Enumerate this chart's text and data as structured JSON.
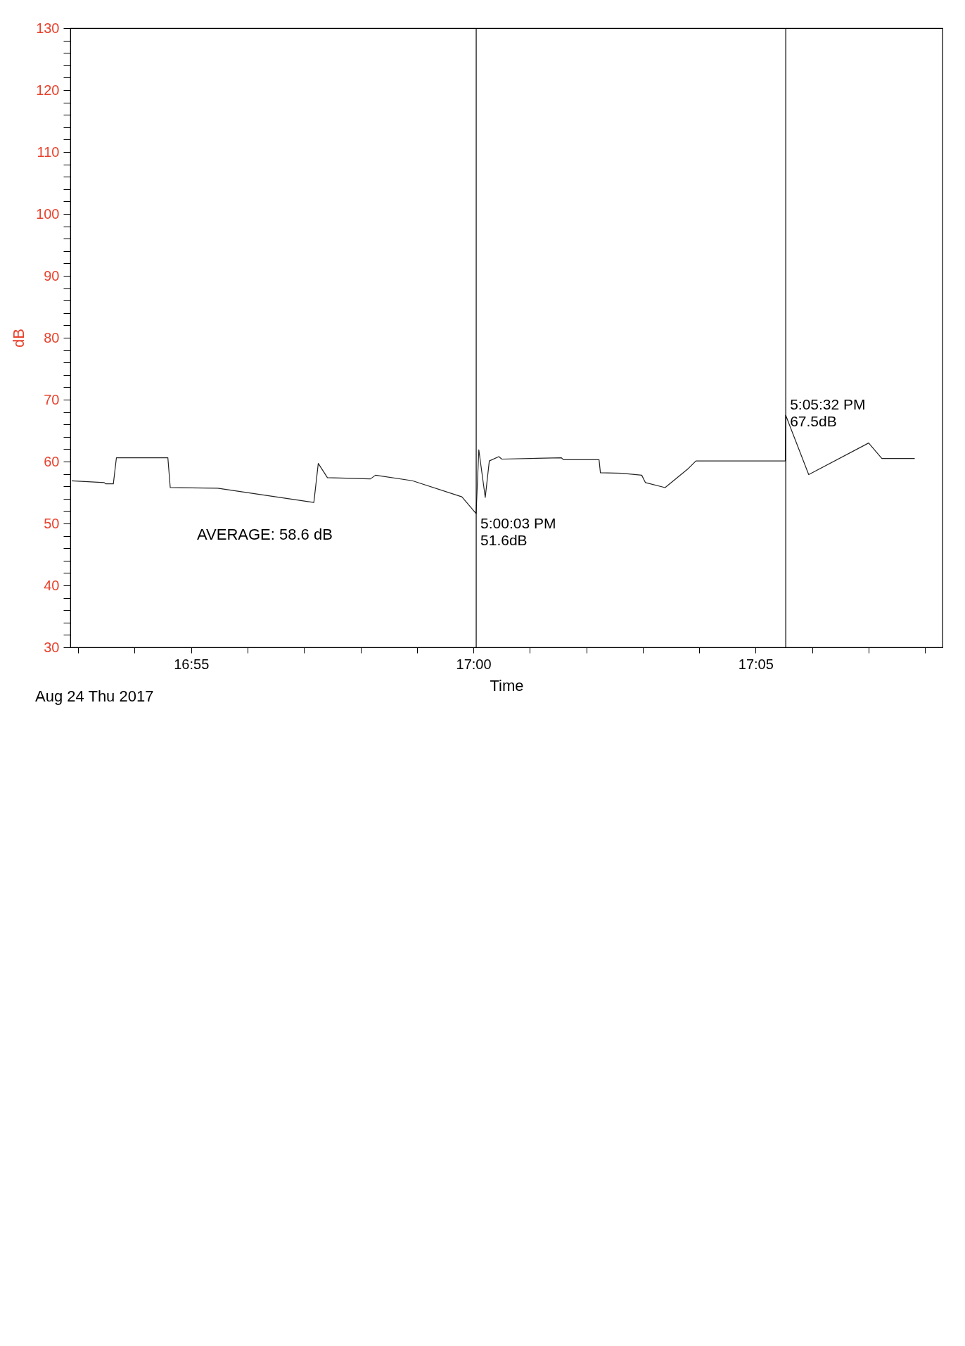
{
  "chart_data": {
    "type": "line",
    "xlabel": "Time",
    "ylabel": "dB",
    "x": [
      16.8814,
      16.891,
      16.8914,
      16.8937,
      16.8946,
      16.9098,
      16.9105,
      16.9245,
      16.9529,
      16.9542,
      16.9569,
      16.9696,
      16.9711,
      16.982,
      16.9966,
      17.0008,
      17.0016,
      17.0035,
      17.0047,
      17.0075,
      17.0084,
      17.026,
      17.0266,
      17.0371,
      17.0375,
      17.0439,
      17.0497,
      17.0508,
      17.0566,
      17.0635,
      17.0657,
      17.0921,
      17.0922,
      17.099,
      17.1167,
      17.1206,
      17.1303
    ],
    "series": [
      {
        "color": "#222222",
        "values": [
          56.9,
          56.6,
          56.4,
          56.4,
          60.6,
          60.6,
          55.8,
          55.7,
          53.4,
          59.7,
          57.4,
          57.2,
          57.8,
          56.9,
          54.3,
          51.6,
          61.9,
          54.2,
          60.1,
          60.8,
          60.4,
          60.6,
          60.3,
          60.3,
          58.2,
          58.1,
          57.8,
          56.6,
          55.8,
          58.9,
          60.1,
          60.1,
          67.5,
          57.9,
          63.0,
          60.5,
          60.5
        ]
      }
    ],
    "xlim": [
      16.881,
      17.1385
    ],
    "xticks": [
      {
        "value": 16.88333,
        "label": null
      },
      {
        "value": 16.9,
        "label": null
      },
      {
        "value": 16.91667,
        "label": "16:55"
      },
      {
        "value": 16.93333,
        "label": null
      },
      {
        "value": 16.95,
        "label": null
      },
      {
        "value": 16.96667,
        "label": null
      },
      {
        "value": 16.98333,
        "label": null
      },
      {
        "value": 17,
        "label": "17:00"
      },
      {
        "value": 17.01667,
        "label": null
      },
      {
        "value": 17.03333,
        "label": null
      },
      {
        "value": 17.05,
        "label": null
      },
      {
        "value": 17.06667,
        "label": null
      },
      {
        "value": 17.08333,
        "label": "17:05"
      },
      {
        "value": 17.1,
        "label": null
      },
      {
        "value": 17.11667,
        "label": null
      },
      {
        "value": 17.13333,
        "label": null
      }
    ],
    "ylim": [
      30,
      130
    ],
    "yticks": [
      30,
      {
        "value": 32,
        "label": null
      },
      {
        "value": 34,
        "label": null
      },
      {
        "value": 36,
        "label": null
      },
      {
        "value": 38,
        "label": null
      },
      40,
      {
        "value": 42,
        "label": null
      },
      {
        "value": 44,
        "label": null
      },
      {
        "value": 46,
        "label": null
      },
      {
        "value": 48,
        "label": null
      },
      50,
      {
        "value": 52,
        "label": null
      },
      {
        "value": 54,
        "label": null
      },
      {
        "value": 56,
        "label": null
      },
      {
        "value": 58,
        "label": null
      },
      60,
      {
        "value": 62,
        "label": null
      },
      {
        "value": 64,
        "label": null
      },
      {
        "value": 66,
        "label": null
      },
      {
        "value": 68,
        "label": null
      },
      70,
      {
        "value": 72,
        "label": null
      },
      {
        "value": 74,
        "label": null
      },
      {
        "value": 76,
        "label": null
      },
      {
        "value": 78,
        "label": null
      },
      80,
      {
        "value": 82,
        "label": null
      },
      {
        "value": 84,
        "label": null
      },
      {
        "value": 86,
        "label": null
      },
      {
        "value": 88,
        "label": null
      },
      90,
      {
        "value": 92,
        "label": null
      },
      {
        "value": 94,
        "label": null
      },
      {
        "value": 96,
        "label": null
      },
      {
        "value": 98,
        "label": null
      },
      100,
      {
        "value": 102,
        "label": null
      },
      {
        "value": 104,
        "label": null
      },
      {
        "value": 106,
        "label": null
      },
      {
        "value": 108,
        "label": null
      },
      110,
      {
        "value": 112,
        "label": null
      },
      {
        "value": 114,
        "label": null
      },
      {
        "value": 116,
        "label": null
      },
      {
        "value": 118,
        "label": null
      },
      120,
      {
        "value": 122,
        "label": null
      },
      {
        "value": 124,
        "label": null
      },
      {
        "value": 126,
        "label": null
      },
      {
        "value": 128,
        "label": null
      },
      130
    ],
    "ref_lines": [
      {
        "axis": "x",
        "value": 17.00083
      },
      {
        "axis": "x",
        "value": 17.09222
      }
    ],
    "annotations": [
      "AVERAGE:  58.6 dB",
      "Aug 24 Thu 2017",
      {
        "text": "5:00:03 PM\n51.6dB",
        "x": 17.00083,
        "y": 51.6
      },
      {
        "text": "5:05:32 PM\n67.5dB",
        "x": 17.09222,
        "y": 67.5
      }
    ],
    "grid": false,
    "marker": "none",
    "line_style": "solid"
  }
}
